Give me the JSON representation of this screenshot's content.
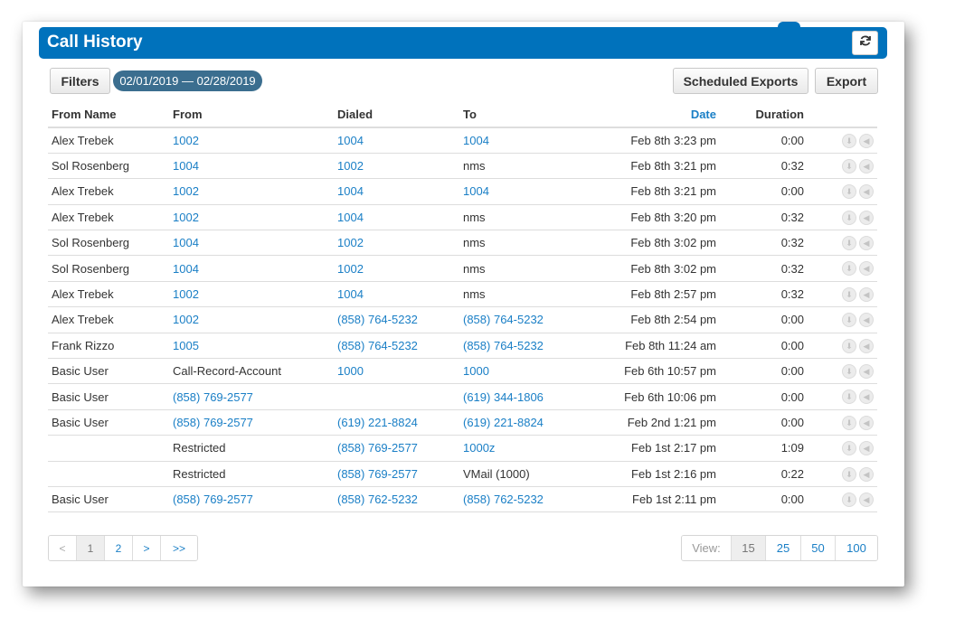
{
  "header": {
    "title": "Call History"
  },
  "toolbar": {
    "filters_label": "Filters",
    "date_range": "02/01/2019 — 02/28/2019",
    "scheduled_exports_label": "Scheduled Exports",
    "export_label": "Export"
  },
  "table": {
    "columns": [
      "From Name",
      "From",
      "Dialed",
      "To",
      "Date",
      "Duration"
    ],
    "rows": [
      {
        "from_name": "Alex Trebek",
        "from": "1002",
        "dialed": "1004",
        "to": "1004",
        "date": "Feb 8th 3:23 pm",
        "duration": "0:00"
      },
      {
        "from_name": "Sol Rosenberg",
        "from": "1004",
        "dialed": "1002",
        "to": "nms",
        "date": "Feb 8th 3:21 pm",
        "duration": "0:32"
      },
      {
        "from_name": "Alex Trebek",
        "from": "1002",
        "dialed": "1004",
        "to": "1004",
        "date": "Feb 8th 3:21 pm",
        "duration": "0:00"
      },
      {
        "from_name": "Alex Trebek",
        "from": "1002",
        "dialed": "1004",
        "to": "nms",
        "date": "Feb 8th 3:20 pm",
        "duration": "0:32"
      },
      {
        "from_name": "Sol Rosenberg",
        "from": "1004",
        "dialed": "1002",
        "to": "nms",
        "date": "Feb 8th 3:02 pm",
        "duration": "0:32"
      },
      {
        "from_name": "Sol Rosenberg",
        "from": "1004",
        "dialed": "1002",
        "to": "nms",
        "date": "Feb 8th 3:02 pm",
        "duration": "0:32"
      },
      {
        "from_name": "Alex Trebek",
        "from": "1002",
        "dialed": "1004",
        "to": "nms",
        "date": "Feb 8th 2:57 pm",
        "duration": "0:32"
      },
      {
        "from_name": "Alex Trebek",
        "from": "1002",
        "dialed": "(858) 764-5232",
        "to": "(858) 764-5232",
        "date": "Feb 8th 2:54 pm",
        "duration": "0:00"
      },
      {
        "from_name": "Frank Rizzo",
        "from": "1005",
        "dialed": "(858) 764-5232",
        "to": "(858) 764-5232",
        "date": "Feb 8th 11:24 am",
        "duration": "0:00"
      },
      {
        "from_name": "Basic User",
        "from": "Call-Record-Account",
        "dialed": "1000",
        "to": "1000",
        "date": "Feb 6th 10:57 pm",
        "duration": "0:00"
      },
      {
        "from_name": "Basic User",
        "from": "(858) 769-2577",
        "dialed": "",
        "to": "(619) 344-1806",
        "date": "Feb 6th 10:06 pm",
        "duration": "0:00"
      },
      {
        "from_name": "Basic User",
        "from": "(858) 769-2577",
        "dialed": "(619) 221-8824",
        "to": "(619) 221-8824",
        "date": "Feb 2nd 1:21 pm",
        "duration": "0:00"
      },
      {
        "from_name": "",
        "from": "Restricted",
        "dialed": "(858) 769-2577",
        "to": "1000z",
        "date": "Feb 1st 2:17 pm",
        "duration": "1:09"
      },
      {
        "from_name": "",
        "from": "Restricted",
        "dialed": "(858) 769-2577",
        "to": "VMail (1000)",
        "date": "Feb 1st 2:16 pm",
        "duration": "0:22"
      },
      {
        "from_name": "Basic User",
        "from": "(858) 769-2577",
        "dialed": "(858) 762-5232",
        "to": "(858) 762-5232",
        "date": "Feb 1st 2:11 pm",
        "duration": "0:00"
      }
    ]
  },
  "pagination": {
    "prev": "<",
    "pages": [
      "1",
      "2"
    ],
    "next": ">",
    "last": ">>",
    "current": "1"
  },
  "view": {
    "label": "View:",
    "options": [
      "15",
      "25",
      "50",
      "100"
    ],
    "selected": "15"
  },
  "colors": {
    "brand": "#0072bc",
    "link": "#1a7fc6",
    "pill": "#3b6e8f"
  },
  "icons": [
    "refresh-icon",
    "download-icon",
    "play-audio-icon"
  ]
}
